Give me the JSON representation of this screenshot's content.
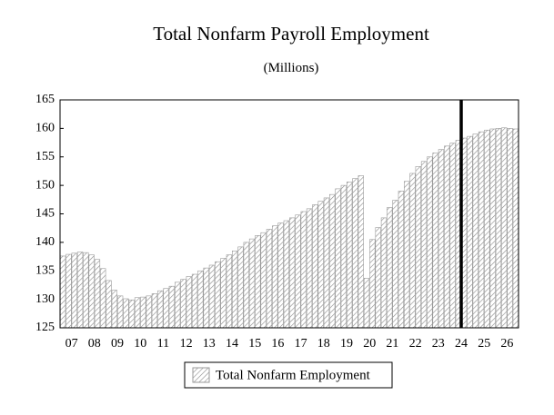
{
  "chart_data": {
    "type": "bar",
    "title": "Total Nonfarm Payroll Employment",
    "subtitle": "(Millions)",
    "categories": [
      null,
      "07",
      null,
      null,
      null,
      "08",
      null,
      null,
      null,
      "09",
      null,
      null,
      null,
      "10",
      null,
      null,
      null,
      "11",
      null,
      null,
      null,
      "12",
      null,
      null,
      null,
      "13",
      null,
      null,
      null,
      "14",
      null,
      null,
      null,
      "15",
      null,
      null,
      null,
      "16",
      null,
      null,
      null,
      "17",
      null,
      null,
      null,
      "18",
      null,
      null,
      null,
      "19",
      null,
      null,
      null,
      "20",
      null,
      null,
      null,
      "21",
      null,
      null,
      null,
      "22",
      null,
      null,
      null,
      "23",
      null,
      null,
      null,
      "24",
      null,
      null,
      null,
      "25",
      null,
      null,
      null,
      "26",
      null,
      null
    ],
    "series": [
      {
        "name": "Total Nonfarm Employment",
        "color": "#999999",
        "values": [
          137.6,
          137.9,
          138.1,
          138.3,
          138.2,
          137.8,
          137.0,
          135.4,
          133.3,
          131.6,
          130.6,
          130.1,
          129.9,
          130.3,
          130.4,
          130.6,
          131.0,
          131.5,
          131.9,
          132.3,
          133.0,
          133.5,
          134.0,
          134.4,
          135.0,
          135.5,
          136.0,
          136.6,
          137.2,
          137.8,
          138.5,
          139.2,
          140.0,
          140.6,
          141.2,
          141.7,
          142.3,
          142.9,
          143.4,
          143.8,
          144.3,
          144.8,
          145.4,
          145.9,
          146.6,
          147.2,
          147.8,
          148.4,
          149.4,
          150.0,
          150.6,
          151.2,
          151.7,
          133.7,
          140.5,
          142.6,
          144.3,
          146.1,
          147.4,
          149.0,
          150.7,
          152.1,
          153.3,
          154.2,
          155.0,
          155.7,
          156.3,
          156.9,
          157.4,
          157.9,
          158.3,
          158.6,
          159.0,
          159.4,
          159.7,
          159.9,
          160.0,
          160.1,
          160.0,
          159.9
        ]
      }
    ],
    "ylim": [
      125,
      165
    ],
    "yticks": [
      125,
      130,
      135,
      140,
      145,
      150,
      155,
      160,
      165
    ],
    "divider_after": 70,
    "legend": "bottom"
  }
}
